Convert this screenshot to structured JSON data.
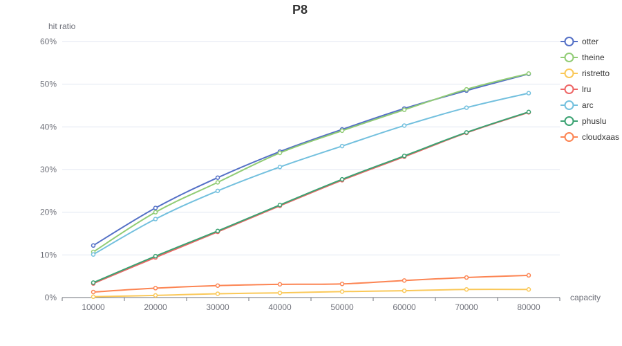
{
  "chart_data": {
    "type": "line",
    "title": "P8",
    "xlabel": "capacity",
    "ylabel": "hit ratio",
    "categories": [
      "10000",
      "20000",
      "30000",
      "40000",
      "50000",
      "60000",
      "70000",
      "80000"
    ],
    "ylim": [
      0,
      60
    ],
    "yticks": [
      0,
      10,
      20,
      30,
      40,
      50,
      60
    ],
    "ytick_labels": [
      "0%",
      "10%",
      "20%",
      "30%",
      "40%",
      "50%",
      "60%"
    ],
    "grid": "horizontal",
    "legend_position": "right",
    "series": [
      {
        "name": "otter",
        "color": "#5470c6",
        "values": [
          12.2,
          21.0,
          28.1,
          34.2,
          39.4,
          44.3,
          48.5,
          52.4
        ]
      },
      {
        "name": "theine",
        "color": "#91cc75",
        "values": [
          10.7,
          20.0,
          27.0,
          33.9,
          39.1,
          44.0,
          48.8,
          52.5
        ]
      },
      {
        "name": "ristretto",
        "color": "#fac858",
        "values": [
          0.2,
          0.5,
          0.9,
          1.1,
          1.4,
          1.6,
          1.9,
          1.9
        ]
      },
      {
        "name": "lru",
        "color": "#ee6666",
        "values": [
          3.3,
          9.4,
          15.4,
          21.5,
          27.5,
          33.0,
          38.6,
          43.4
        ]
      },
      {
        "name": "arc",
        "color": "#73c0de",
        "values": [
          10.1,
          18.4,
          25.0,
          30.6,
          35.5,
          40.3,
          44.5,
          47.9
        ]
      },
      {
        "name": "phuslu",
        "color": "#3ba272",
        "values": [
          3.5,
          9.7,
          15.6,
          21.7,
          27.7,
          33.2,
          38.7,
          43.5
        ]
      },
      {
        "name": "cloudxaas",
        "color": "#fc8452",
        "values": [
          1.3,
          2.2,
          2.8,
          3.1,
          3.2,
          4.0,
          4.7,
          5.2
        ]
      }
    ]
  }
}
